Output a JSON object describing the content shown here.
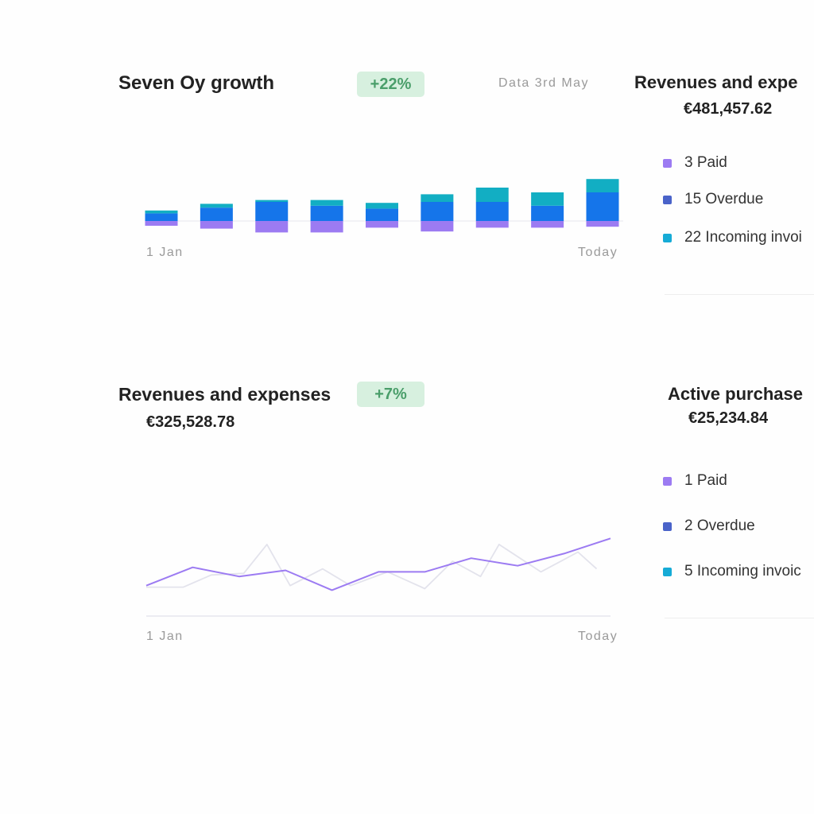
{
  "growth": {
    "title": "Seven Oy growth",
    "badge": "+22%",
    "date_label": "Data 3rd May",
    "axis_start": "1 Jan",
    "axis_end": "Today"
  },
  "revenues_top": {
    "title": "Revenues and expe",
    "amount": "€481,457.62",
    "legend": [
      {
        "label": "3 Paid",
        "color": "#9c7bf2"
      },
      {
        "label": "15 Overdue",
        "color": "#4a63c9"
      },
      {
        "label": "22 Incoming invoi",
        "color": "#16abd6"
      }
    ]
  },
  "revenues_bottom": {
    "title": "Revenues and expenses",
    "badge": "+7%",
    "amount": "€325,528.78",
    "axis_start": "1 Jan",
    "axis_end": "Today"
  },
  "purchases": {
    "title": "Active purchase",
    "amount": "€25,234.84",
    "legend": [
      {
        "label": "1 Paid",
        "color": "#9c7bf2"
      },
      {
        "label": "2 Overdue",
        "color": "#4a63c9"
      },
      {
        "label": "5 Incoming invoic",
        "color": "#16abd6"
      }
    ]
  },
  "colors": {
    "purple": "#9c7bf2",
    "blue": "#1575ea",
    "teal": "#12aec3",
    "badge_bg": "#d7f0df",
    "badge_text": "#4a9e6a"
  },
  "chart_data": [
    {
      "type": "bar",
      "stacked": true,
      "categories": [
        "1",
        "2",
        "3",
        "4",
        "5",
        "6",
        "7",
        "8",
        "9"
      ],
      "series": [
        {
          "values": [
            8,
            14,
            20,
            16,
            13,
            20,
            20,
            16,
            30
          ],
          "color": "#1575ea"
        },
        {
          "values": [
            3,
            4,
            2,
            6,
            6,
            8,
            15,
            14,
            14
          ],
          "color": "#12aec3"
        },
        {
          "values": [
            -5,
            -8,
            -12,
            -12,
            -7,
            -11,
            -7,
            -7,
            -6
          ],
          "color": "#9c7bf2"
        }
      ],
      "ylim": [
        -20,
        60
      ],
      "grid": false
    },
    {
      "type": "line",
      "series": [
        {
          "x": [
            0,
            1,
            2,
            3,
            4,
            5,
            6,
            7,
            8,
            9,
            10
          ],
          "values": [
            20,
            32,
            26,
            30,
            17,
            29,
            29,
            38,
            33,
            41,
            51
          ],
          "color": "#9c7bf2"
        },
        {
          "x": [
            0,
            0.8,
            1.4,
            2.1,
            2.6,
            3.1,
            3.8,
            4.4,
            5.2,
            6,
            6.6,
            7.2,
            7.6,
            8.5,
            9.3,
            9.7
          ],
          "values": [
            19,
            19,
            27,
            28,
            47,
            20,
            31,
            20,
            29,
            18,
            36,
            26,
            47,
            29,
            42,
            31
          ],
          "color": "#e3e3ec"
        }
      ],
      "ylim": [
        0,
        60
      ],
      "grid": false
    }
  ]
}
